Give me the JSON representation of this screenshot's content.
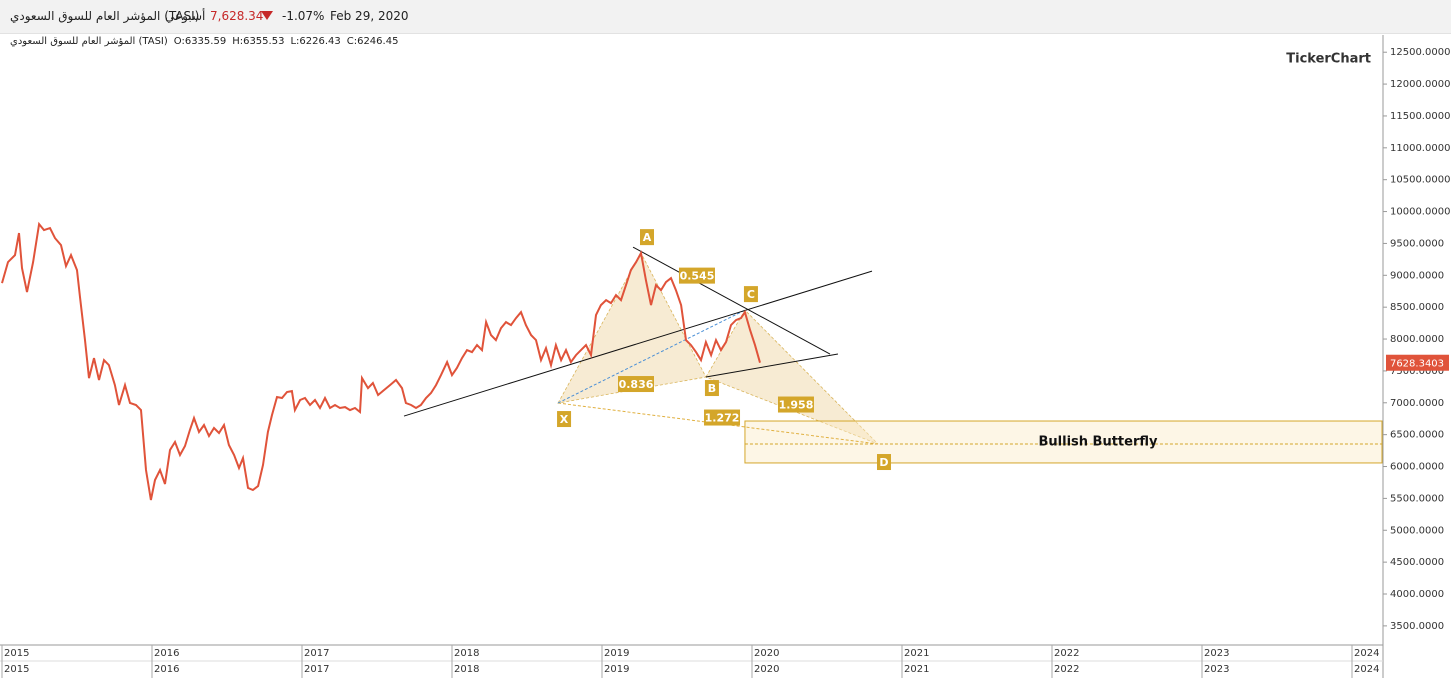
{
  "header": {
    "symbol": "المؤشر العام للسوق السعودي (TASI)",
    "period": "أسبوعي",
    "price": "7,628.34",
    "change": "-1.07%",
    "date": "Feb 29, 2020"
  },
  "subheader": {
    "symbol": "المؤشر العام للسوق السعودي (TASI)",
    "open": "O:6335.59",
    "high": "H:6355.53",
    "low": "L:6226.43",
    "close": "C:6246.45"
  },
  "watermark": "TickerChart",
  "chart_data": {
    "type": "line",
    "color": "#e0533a",
    "x": [
      2015.0,
      2015.04,
      2015.087,
      2015.113,
      2015.133,
      2015.167,
      2015.207,
      2015.247,
      2015.28,
      2015.32,
      2015.353,
      2015.393,
      2015.427,
      2015.46,
      2015.5,
      2015.52,
      2015.553,
      2015.58,
      2015.613,
      2015.647,
      2015.68,
      2015.713,
      2015.753,
      2015.78,
      2015.82,
      2015.853,
      2015.893,
      2015.927,
      2015.96,
      2015.993,
      2016.02,
      2016.053,
      2016.087,
      2016.12,
      2016.153,
      2016.187,
      2016.22,
      2016.253,
      2016.28,
      2016.313,
      2016.347,
      2016.38,
      2016.413,
      2016.447,
      2016.48,
      2016.513,
      2016.547,
      2016.58,
      2016.607,
      2016.64,
      2016.673,
      2016.707,
      2016.74,
      2016.773,
      2016.8,
      2016.833,
      2016.867,
      2016.9,
      2016.933,
      2016.953,
      2016.987,
      2017.02,
      2017.053,
      2017.087,
      2017.12,
      2017.153,
      2017.187,
      2017.22,
      2017.253,
      2017.287,
      2017.32,
      2017.353,
      2017.387,
      2017.4,
      2017.44,
      2017.473,
      2017.507,
      2017.547,
      2017.587,
      2017.627,
      2017.667,
      2017.693,
      2017.727,
      2017.76,
      2017.793,
      2017.827,
      2017.86,
      2017.893,
      2017.927,
      2017.967,
      2018.0,
      2018.033,
      2018.067,
      2018.1,
      2018.133,
      2018.167,
      2018.2,
      2018.227,
      2018.26,
      2018.293,
      2018.327,
      2018.36,
      2018.393,
      2018.427,
      2018.46,
      2018.493,
      2018.527,
      2018.56,
      2018.593,
      2018.627,
      2018.66,
      2018.693,
      2018.727,
      2018.76,
      2018.793,
      2018.827,
      2018.86,
      2018.893,
      2018.927,
      2018.96,
      2018.993,
      2019.027,
      2019.06,
      2019.093,
      2019.127,
      2019.16,
      2019.193,
      2019.227,
      2019.26,
      2019.293,
      2019.327,
      2019.36,
      2019.393,
      2019.427,
      2019.46,
      2019.493,
      2019.527,
      2019.56,
      2019.593,
      2019.627,
      2019.66,
      2019.693,
      2019.727,
      2019.76,
      2019.793,
      2019.827,
      2019.86,
      2019.893,
      2019.927,
      2019.953,
      2019.987,
      2020.02,
      2020.053
    ],
    "values": [
      8878,
      9207,
      9317,
      9662,
      9113,
      8737,
      9207,
      9803,
      9709,
      9740,
      9583,
      9474,
      9145,
      9317,
      9081,
      8658,
      7984,
      7388,
      7701,
      7357,
      7670,
      7592,
      7278,
      6965,
      7278,
      6996,
      6965,
      6886,
      5946,
      5475,
      5789,
      5946,
      5726,
      6259,
      6385,
      6181,
      6322,
      6573,
      6761,
      6541,
      6651,
      6479,
      6604,
      6526,
      6651,
      6338,
      6181,
      5977,
      6134,
      5664,
      5632,
      5695,
      6024,
      6541,
      6808,
      7090,
      7075,
      7169,
      7184,
      6886,
      7043,
      7075,
      6965,
      7043,
      6918,
      7075,
      6918,
      6965,
      6918,
      6933,
      6886,
      6918,
      6855,
      7388,
      7231,
      7310,
      7122,
      7200,
      7278,
      7357,
      7231,
      6996,
      6965,
      6918,
      6965,
      7075,
      7153,
      7278,
      7435,
      7639,
      7435,
      7545,
      7701,
      7827,
      7795,
      7905,
      7827,
      8266,
      8062,
      7984,
      8172,
      8266,
      8219,
      8329,
      8423,
      8219,
      8062,
      7984,
      7670,
      7858,
      7592,
      7905,
      7670,
      7827,
      7639,
      7748,
      7827,
      7905,
      7748,
      8376,
      8533,
      8611,
      8564,
      8689,
      8611,
      8846,
      9082,
      9207,
      9348,
      8924,
      8533,
      8846,
      8768,
      8893,
      8956,
      8768,
      8533,
      7984,
      7905,
      7795,
      7670,
      7952,
      7748,
      7984,
      7827,
      7952,
      8219,
      8297,
      8329,
      8423,
      8141,
      7905,
      7628.34
    ],
    "last_label": "7628.3403",
    "xlim": [
      2015,
      2024.2
    ],
    "ylim": [
      3200,
      12770
    ],
    "xticks": [
      2015,
      2016,
      2017,
      2018,
      2019,
      2020,
      2021,
      2022,
      2023,
      2024
    ],
    "yticks": [
      {
        "value": 3500,
        "label": "3500.0000"
      },
      {
        "value": 4000,
        "label": "4000.0000"
      },
      {
        "value": 4500,
        "label": "4500.0000"
      },
      {
        "value": 5000,
        "label": "5000.0000"
      },
      {
        "value": 5500,
        "label": "5500.0000"
      },
      {
        "value": 6000,
        "label": "6000.0000"
      },
      {
        "value": 6500,
        "label": "6500.0000"
      },
      {
        "value": 7000,
        "label": "7000.0000"
      },
      {
        "value": 7500,
        "label": "7500.0000"
      },
      {
        "value": 8000,
        "label": "8000.0000"
      },
      {
        "value": 8500,
        "label": "8500.0000"
      },
      {
        "value": 9000,
        "label": "9000.0000"
      },
      {
        "value": 9500,
        "label": "9500.0000"
      },
      {
        "value": 10000,
        "label": "10000.0000"
      },
      {
        "value": 10500,
        "label": "10500.0000"
      },
      {
        "value": 11000,
        "label": "11000.0000"
      },
      {
        "value": 11500,
        "label": "11500.0000"
      },
      {
        "value": 12000,
        "label": "12000.0000"
      },
      {
        "value": 12500,
        "label": "12500.0000"
      }
    ],
    "pattern": {
      "name": "Bullish Butterfly",
      "points": [
        {
          "label": "X",
          "x": 2018.707,
          "y": 6996
        },
        {
          "label": "A",
          "x": 2019.26,
          "y": 9348
        },
        {
          "label": "B",
          "x": 2019.693,
          "y": 7404
        },
        {
          "label": "C",
          "x": 2019.953,
          "y": 8454
        },
        {
          "label": "D",
          "x": 2020.84,
          "y": 6353
        }
      ],
      "ratios": [
        0.545,
        0.836,
        1.272,
        1.958
      ],
      "zone": [
        6056,
        6714
      ]
    },
    "trendlines": [
      {
        "x": [
          2017.68,
          2020.8
        ],
        "y": [
          6792,
          9066
        ]
      },
      {
        "x": [
          2019.207,
          2020.52
        ],
        "y": [
          9442,
          7765
        ]
      },
      {
        "x": [
          2019.693,
          2020.573
        ],
        "y": [
          7404,
          7765
        ]
      }
    ]
  }
}
